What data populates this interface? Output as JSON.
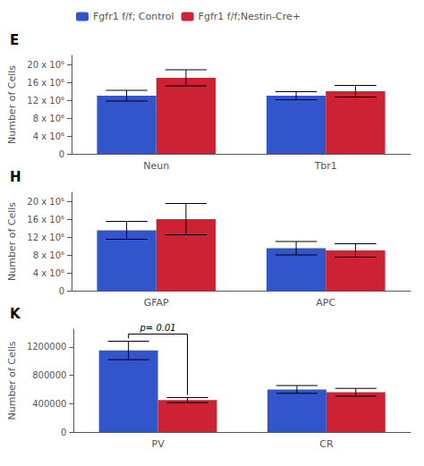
{
  "chart_data": [
    {
      "type": "bar",
      "title": "E",
      "legend": "upper left",
      "grid": false,
      "categories": [
        "Neun",
        "Tbr1"
      ],
      "series": [
        {
          "name": "Fgfr1 f/f; Control",
          "color": "#3355cc",
          "values": [
            13000000,
            13000000
          ],
          "errors": [
            1200000,
            900000
          ]
        },
        {
          "name": "Fgfr1 f/f;Nestin-Cre+",
          "color": "#cc2233",
          "values": [
            17000000,
            14000000
          ],
          "errors": [
            1800000,
            1300000
          ]
        }
      ],
      "ylabel": "Number of Cells",
      "ylim": [
        0,
        22000000
      ],
      "yticks": [
        0,
        {
          "value": 4000000,
          "label": "4 x 10⁶"
        },
        {
          "value": 8000000,
          "label": "8 x 10⁶"
        },
        {
          "value": 12000000,
          "label": "12 x 10⁶"
        },
        {
          "value": 16000000,
          "label": "16 x 10⁶"
        },
        {
          "value": 20000000,
          "label": "20 x 10⁶"
        }
      ]
    },
    {
      "type": "bar",
      "title": "H",
      "grid": false,
      "categories": [
        "GFAP",
        "APC"
      ],
      "series": [
        {
          "name": "Fgfr1 f/f; Control",
          "color": "#3355cc",
          "values": [
            13500000,
            9500000
          ],
          "errors": [
            2000000,
            1500000
          ]
        },
        {
          "name": "Fgfr1 f/f;Nestin-Cre+",
          "color": "#cc2233",
          "values": [
            16000000,
            9000000
          ],
          "errors": [
            3500000,
            1500000
          ]
        }
      ],
      "ylabel": "Number of Cells",
      "ylim": [
        0,
        22000000
      ],
      "yticks": [
        0,
        {
          "value": 4000000,
          "label": "4 x 10⁶"
        },
        {
          "value": 8000000,
          "label": "8 x 10⁶"
        },
        {
          "value": 12000000,
          "label": "12 x 10⁶"
        },
        {
          "value": 16000000,
          "label": "16 x 10⁶"
        },
        {
          "value": 20000000,
          "label": "20 x 10⁶"
        }
      ]
    },
    {
      "type": "bar",
      "title": "K",
      "grid": false,
      "categories": [
        "PV",
        "CR"
      ],
      "series": [
        {
          "name": "Fgfr1 f/f; Control",
          "color": "#3355cc",
          "values": [
            1150000,
            600000
          ],
          "errors": [
            130000,
            55000
          ]
        },
        {
          "name": "Fgfr1 f/f;Nestin-Cre+",
          "color": "#cc2233",
          "values": [
            450000,
            560000
          ],
          "errors": [
            35000,
            55000
          ]
        }
      ],
      "ylabel": "Number of Cells",
      "ylim": [
        0,
        1450000
      ],
      "yticks": [
        0,
        400000,
        800000,
        1200000
      ],
      "annotations": [
        {
          "text": "p= 0.01",
          "category": "PV"
        }
      ]
    }
  ]
}
